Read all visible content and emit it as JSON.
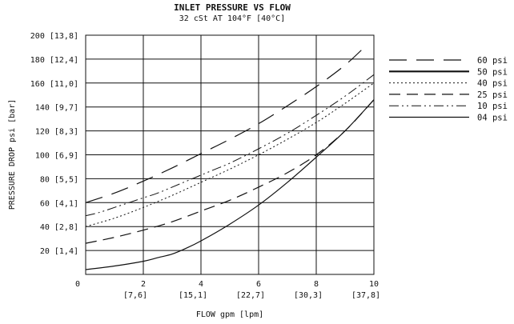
{
  "chart_data": {
    "type": "line",
    "title": "INLET PRESSURE VS FLOW",
    "subtitle": "32 cSt AT 104°F [40°C]",
    "xlabel": "FLOW gpm [lpm]",
    "ylabel": "PRESSURE DROP psi [bar]",
    "xlim": [
      0,
      10
    ],
    "ylim": [
      0,
      200
    ],
    "grid": true,
    "legend_position": "right",
    "x_ticks": [
      {
        "value": 0,
        "label": "0",
        "sub": ""
      },
      {
        "value": 2,
        "label": "2",
        "sub": "[7,6]"
      },
      {
        "value": 4,
        "label": "4",
        "sub": "[15,1]"
      },
      {
        "value": 6,
        "label": "6",
        "sub": "[22,7]"
      },
      {
        "value": 8,
        "label": "8",
        "sub": "[30,3]"
      },
      {
        "value": 10,
        "label": "10",
        "sub": "[37,8]"
      }
    ],
    "y_ticks": [
      {
        "value": 20,
        "label": "20 [1,4]"
      },
      {
        "value": 40,
        "label": "40 [2,8]"
      },
      {
        "value": 60,
        "label": "60 [4,1]"
      },
      {
        "value": 80,
        "label": "80 [5,5]"
      },
      {
        "value": 100,
        "label": "100 [6,9]"
      },
      {
        "value": 120,
        "label": "120 [8,3]"
      },
      {
        "value": 140,
        "label": "140 [9,7]"
      },
      {
        "value": 160,
        "label": "160 [11,0]"
      },
      {
        "value": 180,
        "label": "180 [12,4]"
      },
      {
        "value": 200,
        "label": "200 [13,8]"
      }
    ],
    "series": [
      {
        "name": "60 psi",
        "dash": "22,12",
        "width": 1.2,
        "x": [
          0,
          1,
          2,
          3,
          4,
          5,
          6,
          7,
          8,
          9,
          9.8
        ],
        "y": [
          60,
          68,
          78,
          89,
          101,
          113,
          126,
          141,
          157,
          175,
          193
        ]
      },
      {
        "name": "50 psi",
        "dash": "",
        "width": 2.2,
        "x": [],
        "y": []
      },
      {
        "name": "40 psi",
        "dash": "2,3",
        "width": 1,
        "x": [
          0,
          1,
          2,
          3,
          4,
          5,
          6,
          7,
          8,
          9,
          10
        ],
        "y": [
          40,
          47,
          56,
          66,
          77,
          88,
          100,
          113,
          127,
          143,
          160
        ]
      },
      {
        "name": "25 psi",
        "dash": "14,8",
        "width": 1.2,
        "x": [
          0,
          1,
          2,
          3,
          4,
          5,
          6,
          7,
          8,
          9,
          10
        ],
        "y": [
          26,
          31,
          37,
          44,
          53,
          62,
          73,
          85,
          100,
          120,
          146
        ]
      },
      {
        "name": "10 psi",
        "dash": "12,4,2,4,2,4",
        "width": 1,
        "x": [
          0,
          0.5,
          1,
          1.5,
          2,
          2.5,
          3,
          3.5,
          4,
          4.5,
          5,
          6,
          7,
          8,
          9,
          10
        ],
        "y": [
          49,
          52,
          56,
          60,
          64,
          68,
          73,
          78,
          83,
          88,
          93,
          105,
          118,
          133,
          149,
          167
        ]
      },
      {
        "name": "04 psi",
        "dash": "",
        "width": 1.2,
        "x": [
          0,
          1,
          2,
          2.5,
          3,
          3.5,
          4,
          5,
          6,
          7,
          8,
          9,
          10
        ],
        "y": [
          4,
          7,
          11,
          14,
          17,
          22,
          28,
          42,
          58,
          77,
          98,
          120,
          146
        ]
      }
    ]
  }
}
